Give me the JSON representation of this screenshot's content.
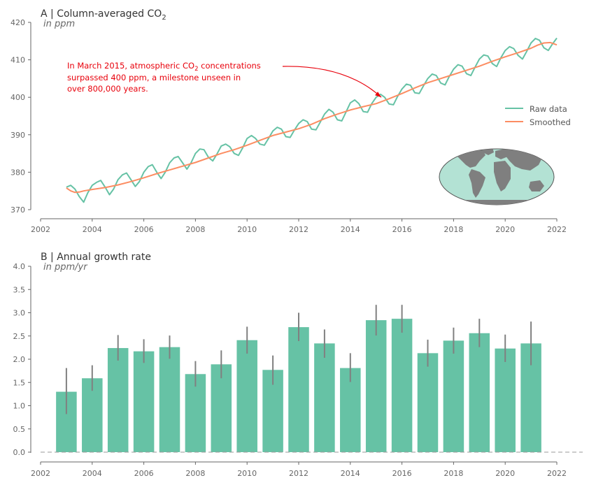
{
  "chart_data": [
    {
      "type": "line",
      "panel": "A",
      "title_letter": "A |",
      "title_main": "Column-averaged CO",
      "title_sub": "2",
      "unit": "in ppm",
      "xlim": [
        2002,
        2022
      ],
      "ylim": [
        370,
        420
      ],
      "x_ticks": [
        "2002",
        "2004",
        "2006",
        "2008",
        "2010",
        "2012",
        "2014",
        "2016",
        "2018",
        "2020",
        "2022"
      ],
      "y_ticks": [
        "370",
        "380",
        "390",
        "400",
        "410",
        "420"
      ],
      "grid": false,
      "legend_position": "right",
      "series": [
        {
          "name": "Raw data",
          "color": "#66c2a5",
          "x": [
            2003.0,
            2003.17,
            2003.33,
            2003.5,
            2003.67,
            2003.83,
            2004.0,
            2004.17,
            2004.33,
            2004.5,
            2004.67,
            2004.83,
            2005.0,
            2005.17,
            2005.33,
            2005.5,
            2005.67,
            2005.83,
            2006.0,
            2006.17,
            2006.33,
            2006.5,
            2006.67,
            2006.83,
            2007.0,
            2007.17,
            2007.33,
            2007.5,
            2007.67,
            2007.83,
            2008.0,
            2008.17,
            2008.33,
            2008.5,
            2008.67,
            2008.83,
            2009.0,
            2009.17,
            2009.33,
            2009.5,
            2009.67,
            2009.83,
            2010.0,
            2010.17,
            2010.33,
            2010.5,
            2010.67,
            2010.83,
            2011.0,
            2011.17,
            2011.33,
            2011.5,
            2011.67,
            2011.83,
            2012.0,
            2012.17,
            2012.33,
            2012.5,
            2012.67,
            2012.83,
            2013.0,
            2013.17,
            2013.33,
            2013.5,
            2013.67,
            2013.83,
            2014.0,
            2014.17,
            2014.33,
            2014.5,
            2014.67,
            2014.83,
            2015.0,
            2015.17,
            2015.33,
            2015.5,
            2015.67,
            2015.83,
            2016.0,
            2016.17,
            2016.33,
            2016.5,
            2016.67,
            2016.83,
            2017.0,
            2017.17,
            2017.33,
            2017.5,
            2017.67,
            2017.83,
            2018.0,
            2018.17,
            2018.33,
            2018.5,
            2018.67,
            2018.83,
            2019.0,
            2019.17,
            2019.33,
            2019.5,
            2019.67,
            2019.83,
            2020.0,
            2020.17,
            2020.33,
            2020.5,
            2020.67,
            2020.83,
            2021.0,
            2021.17,
            2021.33,
            2021.5,
            2021.67,
            2021.83,
            2022.0
          ],
          "y": [
            376.0,
            376.5,
            375.5,
            373.5,
            372.0,
            374.5,
            376.5,
            377.3,
            377.8,
            376.0,
            374.0,
            375.5,
            378.0,
            379.3,
            379.8,
            378.0,
            376.2,
            377.5,
            380.0,
            381.5,
            382.0,
            380.0,
            378.3,
            380.0,
            382.5,
            383.8,
            384.2,
            382.5,
            380.8,
            382.5,
            385.0,
            386.2,
            386.0,
            384.0,
            383.0,
            384.8,
            387.0,
            387.5,
            386.8,
            385.0,
            384.5,
            386.5,
            389.0,
            389.8,
            389.0,
            387.5,
            387.2,
            389.0,
            391.0,
            392.0,
            391.5,
            389.5,
            389.3,
            391.2,
            393.0,
            394.0,
            393.5,
            391.5,
            391.3,
            393.3,
            395.5,
            396.8,
            396.0,
            394.0,
            393.7,
            396.0,
            398.5,
            399.3,
            398.3,
            396.2,
            396.0,
            398.3,
            400.0,
            400.8,
            400.0,
            398.2,
            398.0,
            400.2,
            402.2,
            403.5,
            403.2,
            401.2,
            401.0,
            403.0,
            405.0,
            406.2,
            405.8,
            403.8,
            403.3,
            405.5,
            407.5,
            408.7,
            408.3,
            406.3,
            405.8,
            408.0,
            410.2,
            411.3,
            411.0,
            409.0,
            408.2,
            410.5,
            412.5,
            413.5,
            413.0,
            411.2,
            410.2,
            412.2,
            414.5,
            415.7,
            415.2,
            413.2,
            412.5,
            414.2,
            415.8
          ]
        },
        {
          "name": "Smoothed",
          "color": "#fc8d62",
          "x": [
            2003.0,
            2003.17,
            2003.33,
            2003.5,
            2003.67,
            2004.0,
            2004.5,
            2005.0,
            2005.5,
            2006.0,
            2006.5,
            2007.0,
            2007.5,
            2008.0,
            2008.5,
            2009.0,
            2009.5,
            2010.0,
            2010.5,
            2011.0,
            2011.5,
            2012.0,
            2012.5,
            2013.0,
            2013.5,
            2014.0,
            2014.5,
            2015.0,
            2015.5,
            2016.0,
            2016.5,
            2017.0,
            2017.5,
            2018.0,
            2018.5,
            2019.0,
            2019.5,
            2020.0,
            2020.5,
            2021.0,
            2021.25,
            2021.5,
            2021.75,
            2022.0
          ],
          "y": [
            375.8,
            375.0,
            374.6,
            374.7,
            375.0,
            375.4,
            375.9,
            376.6,
            377.5,
            378.5,
            379.6,
            380.6,
            381.6,
            382.6,
            383.8,
            385.0,
            386.0,
            387.2,
            388.5,
            389.8,
            390.7,
            391.6,
            392.8,
            394.3,
            395.5,
            396.6,
            397.5,
            398.3,
            399.6,
            401.0,
            402.5,
            403.9,
            405.0,
            406.1,
            407.2,
            408.3,
            409.6,
            410.8,
            411.9,
            413.1,
            413.9,
            414.5,
            414.6,
            414.0
          ]
        }
      ],
      "annotation": {
        "line1_pre": "In March 2015, atmospheric CO",
        "line1_sub": "2",
        "line1_post": " concentrations",
        "line2": "surpassed 400 ppm, a milestone unseen in",
        "line3": "over 800,000 years.",
        "target_x": 2015.2,
        "target_y": 400,
        "color": "#e8000b"
      },
      "inset_map": {
        "ocean_color": "#b3e2d4",
        "land_color": "#7f7f7f"
      }
    },
    {
      "type": "bar",
      "panel": "B",
      "title_letter": "B |",
      "title_main": "Annual growth rate",
      "unit": "in ppm/yr",
      "xlim": [
        2002,
        2023
      ],
      "ylim": [
        0,
        4.0
      ],
      "x_ticks": [
        "2002",
        "2004",
        "2006",
        "2008",
        "2010",
        "2012",
        "2014",
        "2016",
        "2018",
        "2020",
        "2022"
      ],
      "y_ticks": [
        "0.0",
        "0.5",
        "1.0",
        "1.5",
        "2.0",
        "2.5",
        "3.0",
        "3.5",
        "4.0"
      ],
      "grid": false,
      "bar_color": "#66c2a5",
      "error_color": "#808080",
      "zero_line_color": "#999999",
      "years": [
        2003,
        2004,
        2005,
        2006,
        2007,
        2008,
        2009,
        2010,
        2011,
        2012,
        2013,
        2014,
        2015,
        2016,
        2017,
        2018,
        2019,
        2020,
        2021
      ],
      "values": [
        1.3,
        1.59,
        2.24,
        2.17,
        2.26,
        1.68,
        1.89,
        2.41,
        1.77,
        2.69,
        2.34,
        1.81,
        2.84,
        2.87,
        2.13,
        2.4,
        2.56,
        2.23,
        2.34
      ],
      "error_low": [
        0.82,
        1.32,
        1.97,
        1.92,
        2.01,
        1.41,
        1.59,
        2.12,
        1.45,
        2.39,
        2.03,
        1.51,
        2.51,
        2.57,
        1.84,
        2.12,
        2.26,
        1.94,
        1.87
      ],
      "error_high": [
        1.81,
        1.87,
        2.52,
        2.43,
        2.51,
        1.96,
        2.19,
        2.7,
        2.08,
        3.0,
        2.64,
        2.13,
        3.17,
        3.17,
        2.42,
        2.68,
        2.87,
        2.53,
        2.81
      ]
    }
  ]
}
